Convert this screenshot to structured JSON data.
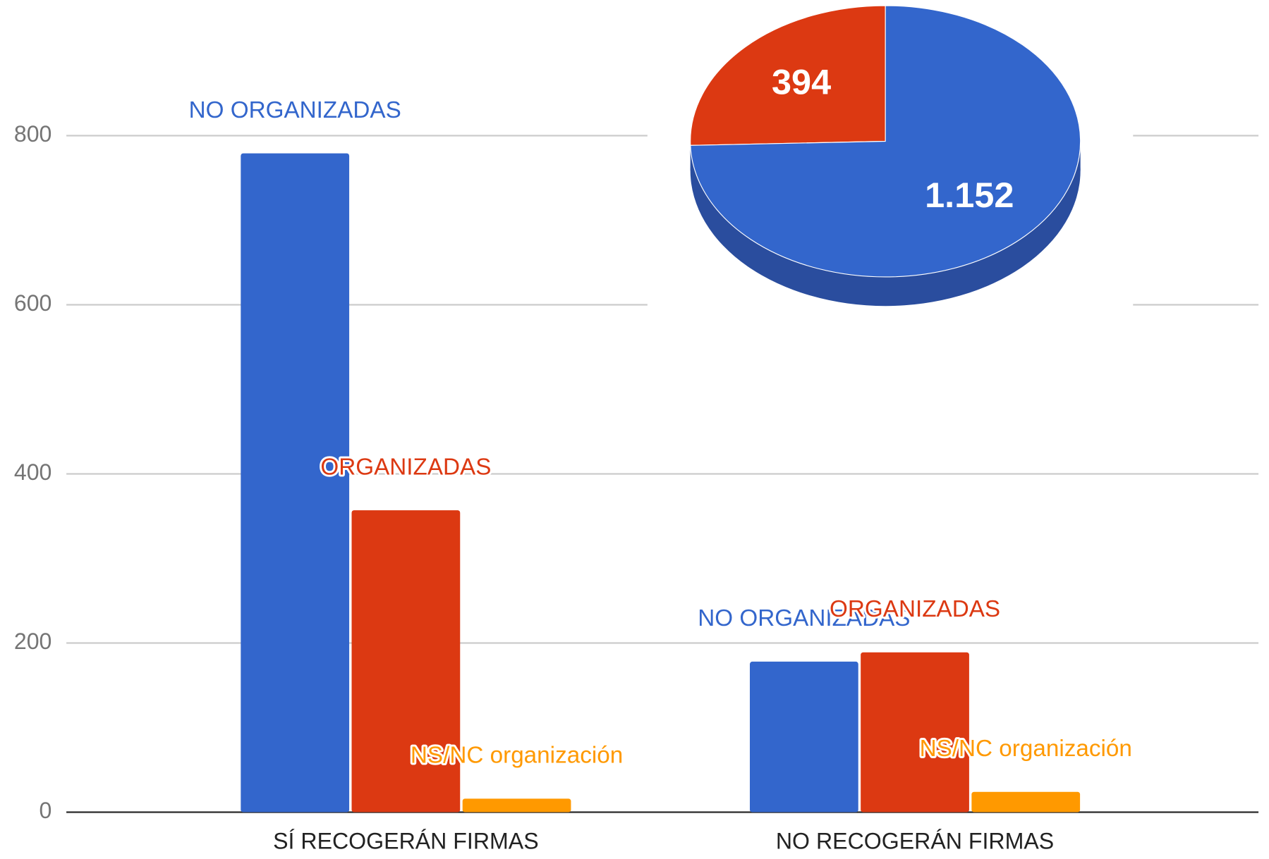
{
  "chart_data": [
    {
      "type": "bar",
      "categories": [
        "SÍ RECOGERÁN FIRMAS",
        "NO RECOGERÁN FIRMAS"
      ],
      "series": [
        {
          "name": "NO ORGANIZADAS",
          "color": "#3366cc",
          "values": [
            779,
            178
          ]
        },
        {
          "name": "ORGANIZADAS",
          "color": "#dc3912",
          "values": [
            357,
            189
          ]
        },
        {
          "name": "NS/NC organización",
          "color": "#ff9900",
          "values": [
            16,
            24
          ]
        }
      ],
      "ylim": [
        0,
        800
      ],
      "yticks": [
        0,
        200,
        400,
        600,
        800
      ],
      "grid": true
    },
    {
      "type": "pie",
      "categories": [
        "NO ORGANIZADAS",
        "ORGANIZADAS"
      ],
      "values": [
        1152,
        394
      ],
      "value_labels": [
        "1.152",
        "394"
      ],
      "colors": [
        "#3366cc",
        "#dc3912"
      ]
    }
  ]
}
